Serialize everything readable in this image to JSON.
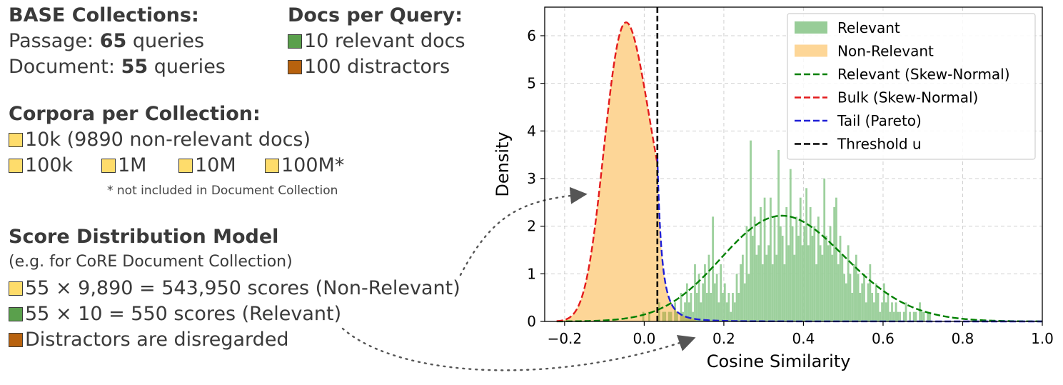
{
  "left_panel": {
    "base": {
      "heading": "BASE Collections:",
      "passage_label": "Passage: ",
      "passage_count": "65",
      "passage_unit": " queries",
      "document_label": "Document: ",
      "document_count": "55",
      "document_unit": " queries"
    },
    "docs": {
      "heading": "Docs per Query:",
      "relevant": "10 relevant docs",
      "distractors": "100 distractors"
    },
    "corpora": {
      "heading": "Corpora per Collection:",
      "first": "10k (9890 non-relevant docs)",
      "items": [
        "100k",
        "1M",
        "10M",
        "100M*"
      ],
      "footnote": "* not included in Document Collection"
    },
    "model": {
      "heading": "Score Distribution Model",
      "subheading": "(e.g. for CoRE Document Collection)",
      "line1": "55 × 9,890 = 543,950 scores (Non-Relevant)",
      "line2": "55 × 10 = 550 scores (Relevant)",
      "line3": "Distractors are disregarded"
    }
  },
  "colors": {
    "relevant_fill": "#98cd98",
    "nonrelevant_fill": "#fdd697",
    "overlap_fill": "#c4b45a",
    "relevant_fit": "#008000",
    "bulk_fit": "#e31a1c",
    "tail_fit": "#1f1fd6",
    "threshold": "#000000",
    "swatch_yellow": "#fedc6b",
    "swatch_green": "#5aa04c",
    "swatch_orange": "#b8620e"
  },
  "chart_data": {
    "type": "histogram",
    "title": "",
    "xlabel": "Cosine Similarity",
    "ylabel": "Density",
    "xlim": [
      -0.25,
      1.0
    ],
    "ylim": [
      0,
      6.6
    ],
    "xticks": [
      -0.2,
      0.0,
      0.2,
      0.4,
      0.6,
      0.8,
      1.0
    ],
    "xtick_labels": [
      "−0.2",
      "0.0",
      "0.2",
      "0.4",
      "0.6",
      "0.8",
      "1.0"
    ],
    "yticks": [
      0,
      1,
      2,
      3,
      4,
      5,
      6
    ],
    "grid": true,
    "legend_position": "top-right",
    "threshold_u": 0.033,
    "series": [
      {
        "name": "Relevant",
        "kind": "histogram",
        "bin_start": -0.005,
        "bin_width": 0.005,
        "values": [
          0.2,
          0,
          0,
          0.2,
          0,
          0,
          0,
          0,
          0.4,
          0,
          0.2,
          0.2,
          0,
          0.2,
          0.2,
          0,
          0.4,
          0.2,
          0,
          0.6,
          0.2,
          0.4,
          0.8,
          0.4,
          0.6,
          0.2,
          1.2,
          0.6,
          1.0,
          0.4,
          0.8,
          1.2,
          0.6,
          1.4,
          0.6,
          2.2,
          0.8,
          1.0,
          0.4,
          1.2,
          0.6,
          0.8,
          0.4,
          0.6,
          0.2,
          0.6,
          0.4,
          1.0,
          0.6,
          1.2,
          1.4,
          0.8,
          2.0,
          1.0,
          3.8,
          1.8,
          2.2,
          1.4,
          1.6,
          2.4,
          1.2,
          2.6,
          1.4,
          1.6,
          2.6,
          1.2,
          2.2,
          1.4,
          3.6,
          2.0,
          1.8,
          1.2,
          2.4,
          1.6,
          3.2,
          2.0,
          1.4,
          2.2,
          1.8,
          2.6,
          1.6,
          2.0,
          2.8,
          1.6,
          2.4,
          1.8,
          2.0,
          1.2,
          2.2,
          1.6,
          1.4,
          3.0,
          1.8,
          1.6,
          2.0,
          1.4,
          2.4,
          2.6,
          1.2,
          1.8,
          1.4,
          1.0,
          0.8,
          1.6,
          1.0,
          0.6,
          1.2,
          1.4,
          1.0,
          0.6,
          0.8,
          1.0,
          0.4,
          0.8,
          1.2,
          0.6,
          0.4,
          0.8,
          0.6,
          0.2,
          0.4,
          0.8,
          0.4,
          0.6,
          0.2,
          0.4,
          0.2,
          0.4,
          0.2,
          0.2,
          0,
          0.2,
          0.4,
          0,
          0.2,
          0,
          0.2,
          0.2,
          0,
          0.4,
          0.2,
          0.2,
          0,
          0.2,
          0.2
        ]
      },
      {
        "name": "Non-Relevant",
        "kind": "histogram_smooth",
        "x_range": [
          -0.25,
          0.25
        ],
        "peak_x": -0.035,
        "peak_y": 6.3
      },
      {
        "name": "Relevant (Skew-Normal)",
        "kind": "fit",
        "style": "dashed",
        "peak_x": 0.345,
        "peak_y": 2.22
      },
      {
        "name": "Bulk (Skew-Normal)",
        "kind": "fit",
        "style": "dashed",
        "peak_x": -0.04,
        "peak_y": 6.28,
        "x_range": [
          -0.25,
          0.033
        ]
      },
      {
        "name": "Tail (Pareto)",
        "kind": "fit",
        "style": "dashed",
        "start_x": 0.033,
        "start_y": 3.45,
        "x_range": [
          0.033,
          1.0
        ]
      },
      {
        "name": "Threshold u",
        "kind": "vline",
        "style": "dashed",
        "x": 0.033
      }
    ],
    "legend": [
      "Relevant",
      "Non-Relevant",
      "Relevant (Skew-Normal)",
      "Bulk (Skew-Normal)",
      "Tail (Pareto)",
      "Threshold u"
    ]
  }
}
